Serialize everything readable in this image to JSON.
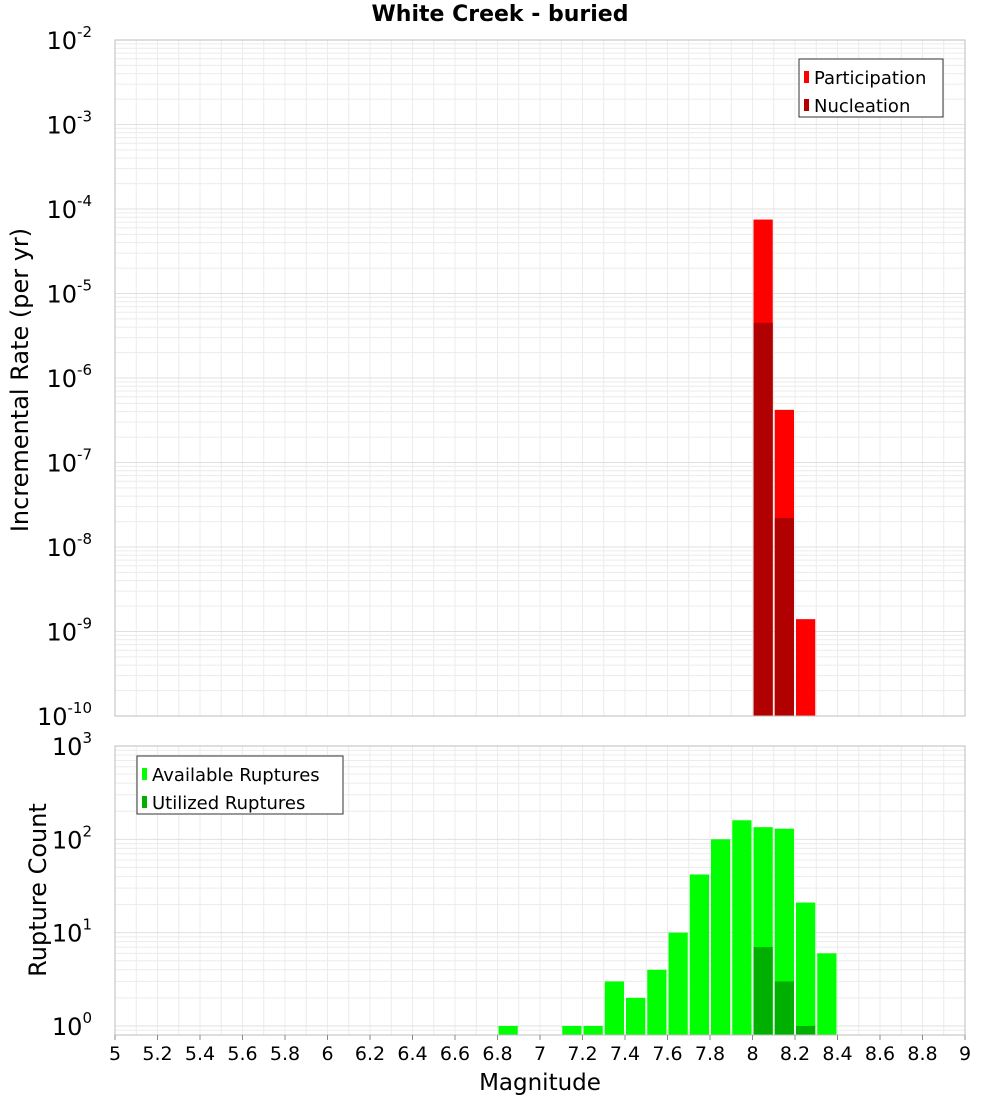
{
  "chart_data": [
    {
      "type": "bar",
      "title": "White Creek - buried",
      "ylabel": "Incremental Rate (per yr)",
      "yscale": "log",
      "ylim": [
        1e-10,
        0.01
      ],
      "xlim": [
        5,
        9
      ],
      "grid": true,
      "legend_position": "top-right",
      "bin_width": 0.1,
      "series": [
        {
          "name": "Participation",
          "color": "#ff0000",
          "x": [
            8.05,
            8.15,
            8.25
          ],
          "values": [
            7.5e-05,
            4.2e-07,
            1.4e-09
          ]
        },
        {
          "name": "Nucleation",
          "color": "#b00000",
          "x": [
            8.05,
            8.15
          ],
          "values": [
            4.5e-06,
            2.2e-08
          ]
        }
      ]
    },
    {
      "type": "bar",
      "xlabel": "Magnitude",
      "ylabel": "Rupture Count",
      "yscale": "log",
      "ylim": [
        0.8,
        1000
      ],
      "xlim": [
        5,
        9
      ],
      "grid": true,
      "legend_position": "top-left",
      "bin_width": 0.1,
      "series": [
        {
          "name": "Available Ruptures",
          "color": "#00ff00",
          "x": [
            6.85,
            7.15,
            7.25,
            7.35,
            7.45,
            7.55,
            7.65,
            7.75,
            7.85,
            7.95,
            8.05,
            8.15,
            8.25,
            8.35
          ],
          "values": [
            1,
            1,
            1,
            3,
            2,
            4,
            10,
            42,
            100,
            160,
            135,
            130,
            21,
            6
          ]
        },
        {
          "name": "Utilized Ruptures",
          "color": "#00b000",
          "x": [
            8.05,
            8.15,
            8.25
          ],
          "values": [
            7,
            3,
            1
          ]
        }
      ]
    }
  ],
  "x_ticks": [
    "5",
    "5.2",
    "5.4",
    "5.6",
    "5.8",
    "6",
    "6.2",
    "6.4",
    "6.6",
    "6.8",
    "7",
    "7.2",
    "7.4",
    "7.6",
    "7.8",
    "8",
    "8.2",
    "8.4",
    "8.6",
    "8.8",
    "9"
  ],
  "top_y_ticks": [
    {
      "base": "10",
      "exp": "-2"
    },
    {
      "base": "10",
      "exp": "-3"
    },
    {
      "base": "10",
      "exp": "-4"
    },
    {
      "base": "10",
      "exp": "-5"
    },
    {
      "base": "10",
      "exp": "-6"
    },
    {
      "base": "10",
      "exp": "-7"
    },
    {
      "base": "10",
      "exp": "-8"
    },
    {
      "base": "10",
      "exp": "-9"
    },
    {
      "base": "10",
      "exp": "-10"
    }
  ],
  "bottom_y_ticks": [
    {
      "base": "10",
      "exp": "3"
    },
    {
      "base": "10",
      "exp": "2"
    },
    {
      "base": "10",
      "exp": "1"
    },
    {
      "base": "10",
      "exp": "0"
    }
  ]
}
